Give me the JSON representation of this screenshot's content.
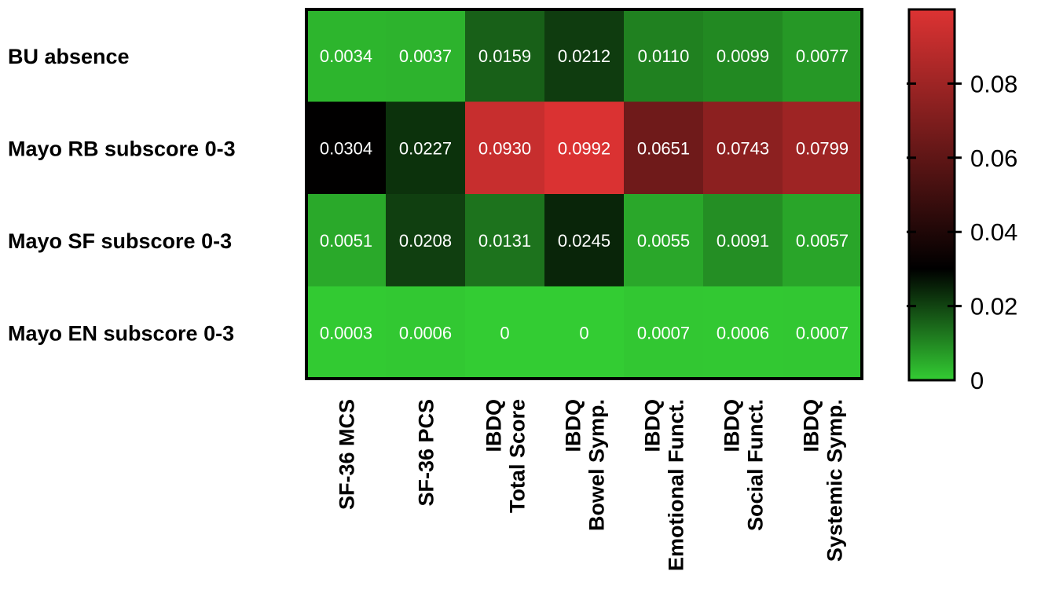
{
  "chart_data": {
    "type": "heatmap",
    "rows": [
      "BU absence",
      "Mayo RB subscore 0-3",
      "Mayo SF subscore 0-3",
      "Mayo EN subscore 0-3"
    ],
    "columns": [
      [
        "SF-36 MCS"
      ],
      [
        "SF-36 PCS"
      ],
      [
        "IBDQ",
        "Total Score"
      ],
      [
        "IBDQ",
        "Bowel Symp."
      ],
      [
        "IBDQ",
        "Emotional Funct."
      ],
      [
        "IBDQ",
        "Social Funct."
      ],
      [
        "IBDQ",
        "Systemic Symp."
      ]
    ],
    "values": [
      [
        0.0034,
        0.0037,
        0.0159,
        0.0212,
        0.011,
        0.0099,
        0.0077
      ],
      [
        0.0304,
        0.0227,
        0.093,
        0.0992,
        0.0651,
        0.0743,
        0.0799
      ],
      [
        0.0051,
        0.0208,
        0.0131,
        0.0245,
        0.0055,
        0.0091,
        0.0057
      ],
      [
        0.0003,
        0.0006,
        0,
        0,
        0.0007,
        0.0006,
        0.0007
      ]
    ],
    "cell_labels": [
      [
        "0.0034",
        "0.0037",
        "0.0159",
        "0.0212",
        "0.0110",
        "0.0099",
        "0.0077"
      ],
      [
        "0.0304",
        "0.0227",
        "0.0930",
        "0.0992",
        "0.0651",
        "0.0743",
        "0.0799"
      ],
      [
        "0.0051",
        "0.0208",
        "0.0131",
        "0.0245",
        "0.0055",
        "0.0091",
        "0.0057"
      ],
      [
        "0.0003",
        "0.0006",
        "0",
        "0",
        "0.0007",
        "0.0006",
        "0.0007"
      ]
    ],
    "colorbar": {
      "range": [
        0,
        0.1
      ],
      "ticks": [
        0,
        0.02,
        0.04,
        0.06,
        0.08
      ],
      "tick_labels": [
        "0",
        "0.02",
        "0.04",
        "0.06",
        "0.08"
      ],
      "colormap": [
        {
          "value": 0,
          "color": "#33cc33"
        },
        {
          "value": 0.03,
          "color": "#000000"
        },
        {
          "value": 0.1,
          "color": "#dd3333"
        }
      ],
      "position": "right"
    },
    "title": "",
    "xlabel": "",
    "ylabel": ""
  }
}
